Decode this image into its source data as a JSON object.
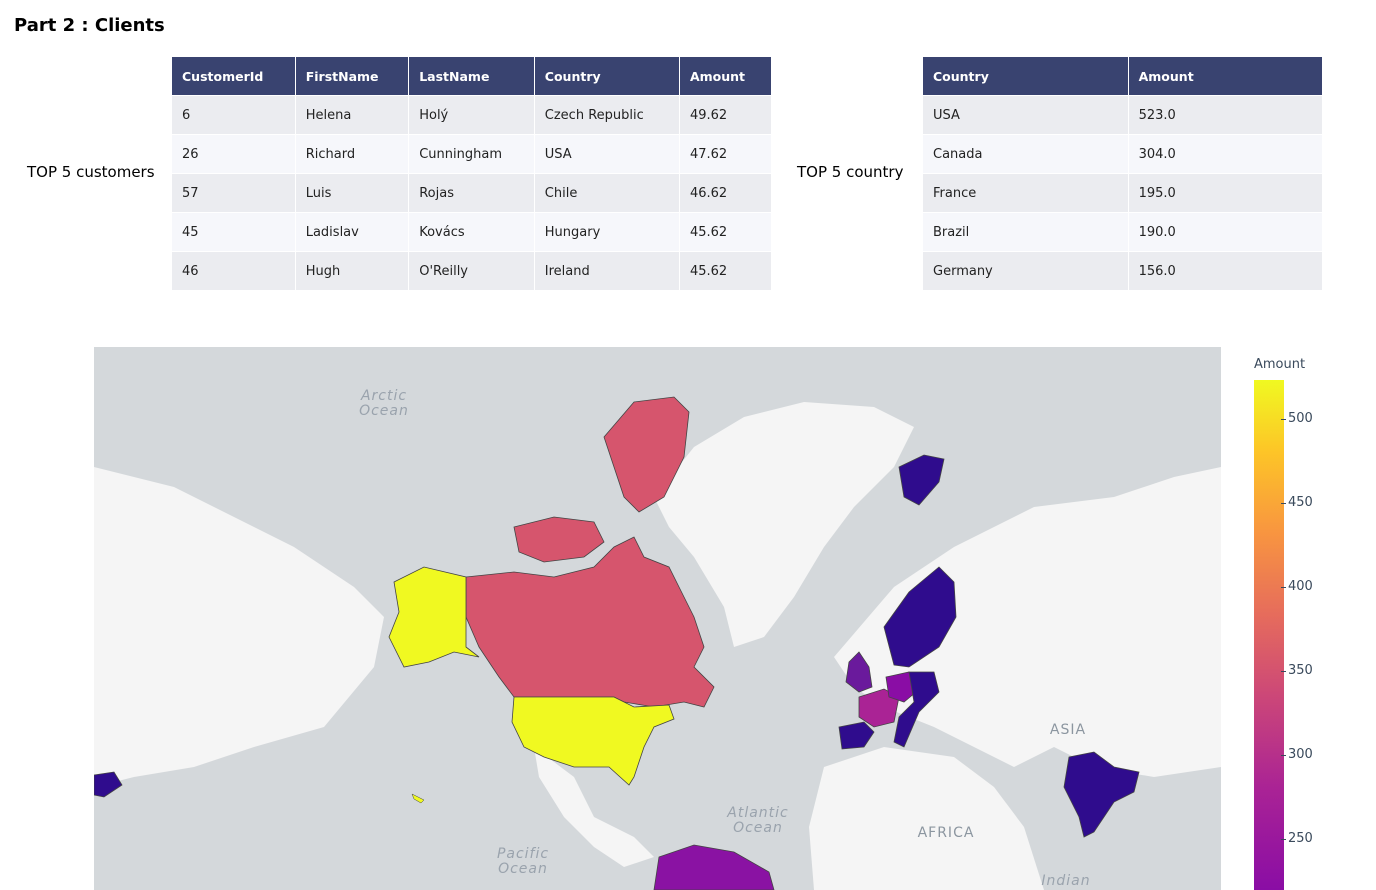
{
  "page": {
    "title": "Part 2 : Clients"
  },
  "customers": {
    "label": "TOP 5 customers",
    "columns": [
      "CustomerId",
      "FirstName",
      "LastName",
      "Country",
      "Amount"
    ],
    "rows": [
      [
        "6",
        "Helena",
        "Holý",
        "Czech Republic",
        "49.62"
      ],
      [
        "26",
        "Richard",
        "Cunningham",
        "USA",
        "47.62"
      ],
      [
        "57",
        "Luis",
        "Rojas",
        "Chile",
        "46.62"
      ],
      [
        "45",
        "Ladislav",
        "Kovács",
        "Hungary",
        "45.62"
      ],
      [
        "46",
        "Hugh",
        "O'Reilly",
        "Ireland",
        "45.62"
      ]
    ]
  },
  "countries": {
    "label": "TOP 5 country",
    "columns": [
      "Country",
      "Amount"
    ],
    "rows": [
      [
        "USA",
        "523.0"
      ],
      [
        "Canada",
        "304.0"
      ],
      [
        "France",
        "195.0"
      ],
      [
        "Brazil",
        "190.0"
      ],
      [
        "Germany",
        "156.0"
      ]
    ]
  },
  "map": {
    "labels": {
      "arctic": [
        "Arctic",
        "Ocean"
      ],
      "atlantic": [
        "Atlantic",
        "Ocean"
      ],
      "pacific": [
        "Pacific",
        "Ocean"
      ],
      "indian": "Indian",
      "africa": "AFRICA",
      "asia": "ASIA"
    }
  },
  "chart_data": {
    "type": "choropleth",
    "colorbar_title": "Amount",
    "colorscale": "plasma",
    "colorbar_ticks": [
      500,
      450,
      400,
      350,
      300,
      250
    ],
    "colors": {
      "ocean": "#d4d8db",
      "land": "#f5f5f5"
    }
  }
}
